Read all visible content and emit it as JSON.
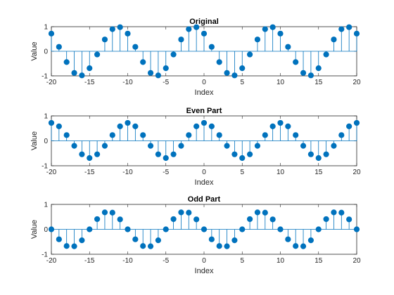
{
  "chart_data": [
    {
      "type": "stem",
      "title": "Original",
      "xlabel": "Index",
      "ylabel": "Value",
      "xlim": [
        -20,
        20
      ],
      "ylim": [
        -1,
        1
      ],
      "xticks": [
        -20,
        -15,
        -10,
        -5,
        0,
        5,
        10,
        15,
        20
      ],
      "yticks": [
        -1,
        0,
        1
      ],
      "color": "#0072bd",
      "x": [
        -20,
        -19,
        -18,
        -17,
        -16,
        -15,
        -14,
        -13,
        -12,
        -11,
        -10,
        -9,
        -8,
        -7,
        -6,
        -5,
        -4,
        -3,
        -2,
        -1,
        0,
        1,
        2,
        3,
        4,
        5,
        6,
        7,
        8,
        9,
        10,
        11,
        12,
        13,
        14,
        15,
        16,
        17,
        18,
        19,
        20
      ],
      "y": [
        0.72,
        0.18,
        -0.44,
        -0.88,
        -0.98,
        -0.69,
        -0.13,
        0.48,
        0.9,
        0.98,
        0.72,
        0.18,
        -0.44,
        -0.88,
        -0.98,
        -0.69,
        -0.13,
        0.48,
        0.9,
        0.98,
        0.72,
        0.18,
        -0.44,
        -0.88,
        -0.98,
        -0.69,
        -0.13,
        0.48,
        0.9,
        0.98,
        0.72,
        0.18,
        -0.44,
        -0.88,
        -0.98,
        -0.69,
        -0.13,
        0.48,
        0.9,
        0.98,
        0.72
      ]
    },
    {
      "type": "stem",
      "title": "Even Part",
      "xlabel": "Index",
      "ylabel": "Value",
      "xlim": [
        -20,
        20
      ],
      "ylim": [
        -1,
        1
      ],
      "xticks": [
        -20,
        -15,
        -10,
        -5,
        0,
        5,
        10,
        15,
        20
      ],
      "yticks": [
        -1,
        0,
        1
      ],
      "color": "#0072bd",
      "x": [
        -20,
        -19,
        -18,
        -17,
        -16,
        -15,
        -14,
        -13,
        -12,
        -11,
        -10,
        -9,
        -8,
        -7,
        -6,
        -5,
        -4,
        -3,
        -2,
        -1,
        0,
        1,
        2,
        3,
        4,
        5,
        6,
        7,
        8,
        9,
        10,
        11,
        12,
        13,
        14,
        15,
        16,
        17,
        18,
        19,
        20
      ],
      "y": [
        0.72,
        0.58,
        0.23,
        -0.2,
        -0.54,
        -0.69,
        -0.54,
        -0.2,
        0.23,
        0.58,
        0.72,
        0.58,
        0.23,
        -0.2,
        -0.54,
        -0.69,
        -0.54,
        -0.2,
        0.23,
        0.58,
        0.72,
        0.58,
        0.23,
        -0.2,
        -0.54,
        -0.69,
        -0.54,
        -0.2,
        0.23,
        0.58,
        0.72,
        0.58,
        0.23,
        -0.2,
        -0.54,
        -0.69,
        -0.54,
        -0.2,
        0.23,
        0.58,
        0.72
      ]
    },
    {
      "type": "stem",
      "title": "Odd Part",
      "xlabel": "Index",
      "ylabel": "Value",
      "xlim": [
        -20,
        20
      ],
      "ylim": [
        -1,
        1
      ],
      "xticks": [
        -20,
        -15,
        -10,
        -5,
        0,
        5,
        10,
        15,
        20
      ],
      "yticks": [
        -1,
        0,
        1
      ],
      "color": "#0072bd",
      "x": [
        -20,
        -19,
        -18,
        -17,
        -16,
        -15,
        -14,
        -13,
        -12,
        -11,
        -10,
        -9,
        -8,
        -7,
        -6,
        -5,
        -4,
        -3,
        -2,
        -1,
        0,
        1,
        2,
        3,
        4,
        5,
        6,
        7,
        8,
        9,
        10,
        11,
        12,
        13,
        14,
        15,
        16,
        17,
        18,
        19,
        20
      ],
      "y": [
        0,
        -0.4,
        -0.67,
        -0.68,
        -0.44,
        0,
        0.41,
        0.68,
        0.67,
        0.4,
        0,
        -0.4,
        -0.67,
        -0.68,
        -0.44,
        0,
        0.41,
        0.68,
        0.67,
        0.4,
        0,
        -0.4,
        -0.67,
        -0.68,
        -0.44,
        0,
        0.41,
        0.68,
        0.67,
        0.4,
        0,
        -0.4,
        -0.67,
        -0.68,
        -0.44,
        0,
        0.41,
        0.68,
        0.67,
        0.4,
        0
      ]
    }
  ]
}
